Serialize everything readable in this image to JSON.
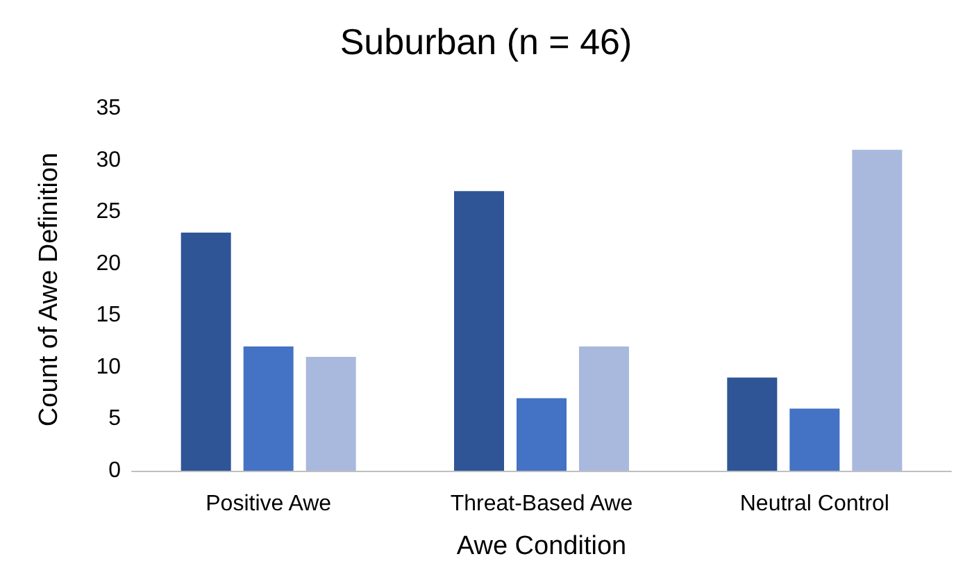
{
  "chart_data": {
    "type": "bar",
    "title": "Suburban (n = 46)",
    "xlabel": "Awe Condition",
    "ylabel": "Count of Awe Definition",
    "categories": [
      "Positive Awe",
      "Threat-Based Awe",
      "Neutral Control"
    ],
    "series": [
      {
        "color": "#2f5597",
        "values": [
          23,
          27,
          9
        ]
      },
      {
        "color": "#4472c4",
        "values": [
          12,
          7,
          6
        ]
      },
      {
        "color": "#a9b8dd",
        "values": [
          11,
          12,
          31
        ]
      }
    ],
    "ylim": [
      0,
      35
    ],
    "yticks": [
      0,
      5,
      10,
      15,
      20,
      25,
      30,
      35
    ],
    "grid": false
  }
}
